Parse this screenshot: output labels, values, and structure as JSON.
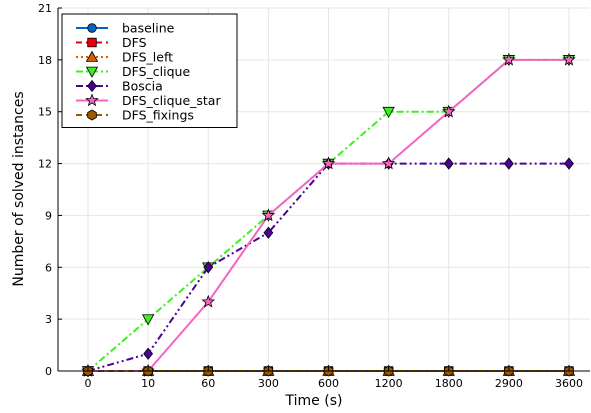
{
  "chart_data": {
    "type": "line",
    "xlabel": "Time (s)",
    "ylabel": "Number of solved instances",
    "categories": [
      "0",
      "10",
      "60",
      "300",
      "600",
      "1200",
      "1800",
      "2900",
      "3600"
    ],
    "ylim": [
      0,
      21
    ],
    "yticks": [
      0,
      3,
      6,
      9,
      12,
      15,
      18,
      21
    ],
    "grid": true,
    "legend_position": "top-left",
    "series": [
      {
        "name": "baseline",
        "color": "#0065c8",
        "dash": "solid",
        "marker": "circle",
        "values": [
          0,
          0,
          0,
          0,
          0,
          0,
          0,
          0,
          0
        ]
      },
      {
        "name": "DFS",
        "color": "#e8000b",
        "dash": "dashed",
        "marker": "square",
        "values": [
          0,
          0,
          0,
          0,
          0,
          0,
          0,
          0,
          0
        ]
      },
      {
        "name": "DFS_left",
        "color": "#d55e00",
        "dash": "dotted",
        "marker": "triangle-up",
        "values": [
          0,
          0,
          0,
          0,
          0,
          0,
          0,
          0,
          0
        ]
      },
      {
        "name": "DFS_clique",
        "color": "#3cf01e",
        "dash": "dashdot",
        "marker": "triangle-down",
        "values": [
          0,
          3,
          6,
          9,
          12,
          15,
          15,
          18,
          18
        ]
      },
      {
        "name": "Boscia",
        "color": "#4b0096",
        "dash": "dashdotdot",
        "marker": "diamond",
        "values": [
          0,
          1,
          6,
          8,
          12,
          12,
          12,
          12,
          12
        ]
      },
      {
        "name": "DFS_clique_star",
        "color": "#f564c4",
        "dash": "solid",
        "marker": "star",
        "values": [
          0,
          0,
          4,
          9,
          12,
          12,
          15,
          18,
          18
        ]
      },
      {
        "name": "DFS_fixings",
        "color": "#9a5a00",
        "dash": "dashed",
        "marker": "hexagon",
        "values": [
          0,
          0,
          0,
          0,
          0,
          0,
          0,
          0,
          0
        ]
      }
    ]
  }
}
